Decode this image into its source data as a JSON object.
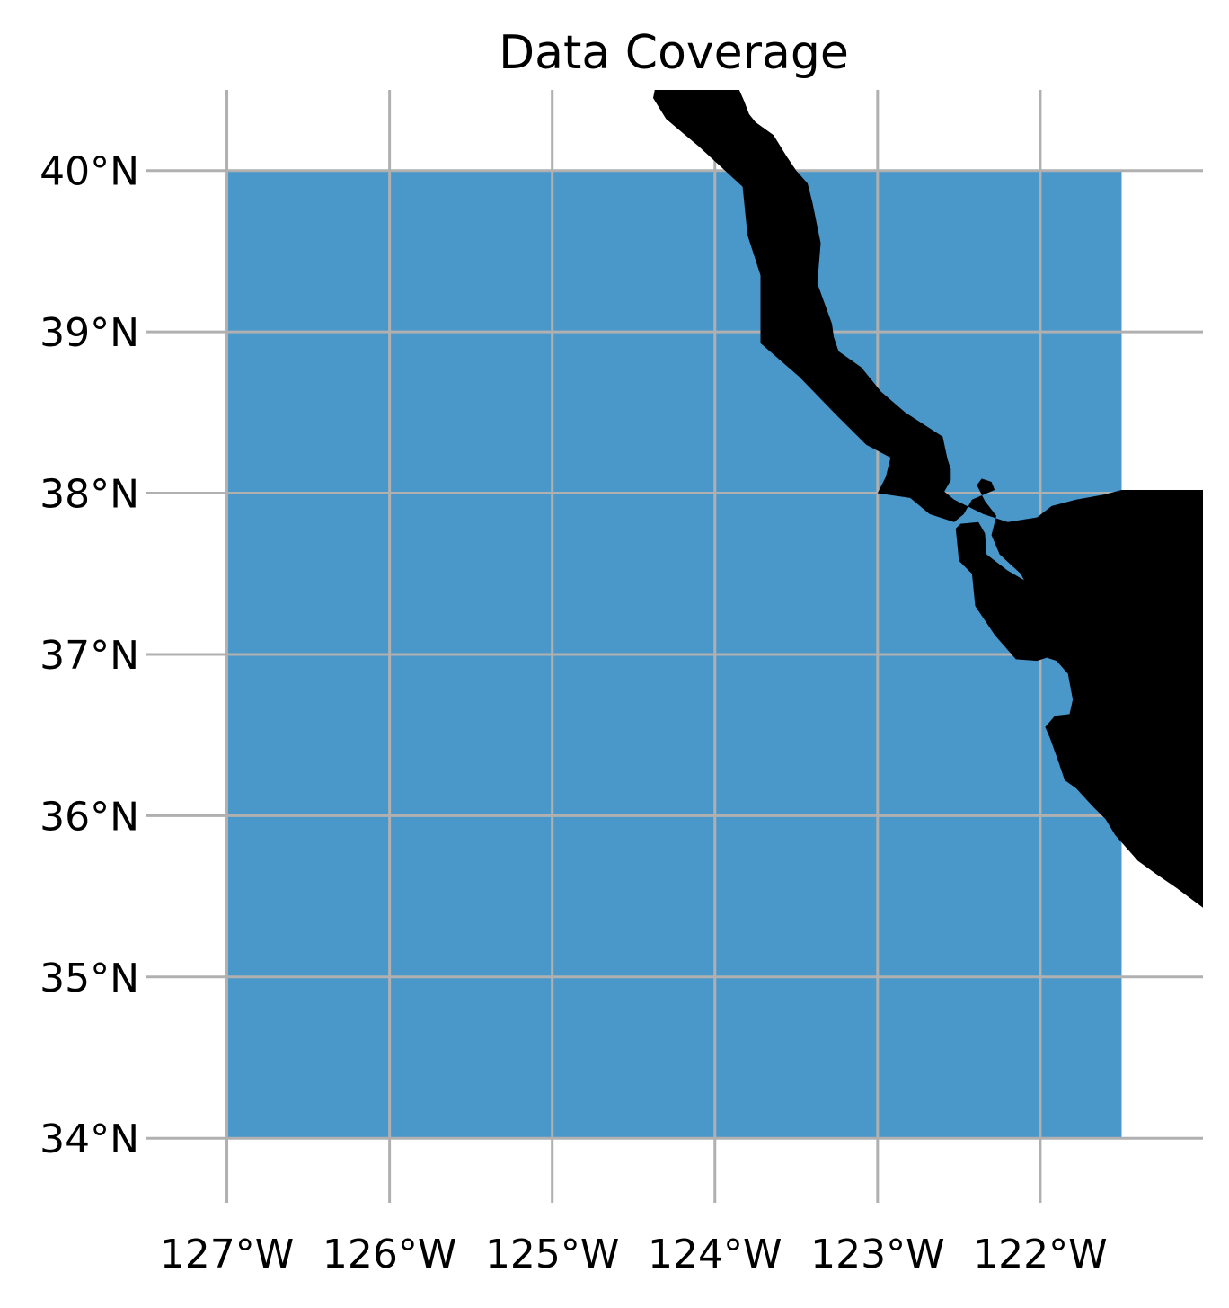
{
  "title": "Data Coverage",
  "map": {
    "extent": {
      "lon": [
        -127.5,
        -121.0
      ],
      "lat": [
        33.6,
        40.5
      ]
    },
    "coverage_box": {
      "lon": [
        -127.0,
        -121.5
      ],
      "lat": [
        34.0,
        40.0
      ]
    },
    "colors": {
      "coverage": "#4a97c9",
      "land": "#000000",
      "grid": "#b0b0b0",
      "background": "#ffffff"
    },
    "gridlines": true,
    "lat_ticks": [
      {
        "value": 40,
        "label": "40°N"
      },
      {
        "value": 39,
        "label": "39°N"
      },
      {
        "value": 38,
        "label": "38°N"
      },
      {
        "value": 37,
        "label": "37°N"
      },
      {
        "value": 36,
        "label": "36°N"
      },
      {
        "value": 35,
        "label": "35°N"
      },
      {
        "value": 34,
        "label": "34°N"
      }
    ],
    "lon_ticks": [
      {
        "value": -127,
        "label": "127°W"
      },
      {
        "value": -126,
        "label": "126°W"
      },
      {
        "value": -125,
        "label": "125°W"
      },
      {
        "value": -124,
        "label": "124°W"
      },
      {
        "value": -123,
        "label": "123°W"
      },
      {
        "value": -122,
        "label": "122°W"
      }
    ],
    "coastline": [
      [
        -123.85,
        40.5
      ],
      [
        -123.82,
        40.43
      ],
      [
        -123.79,
        40.35
      ],
      [
        -123.75,
        40.3
      ],
      [
        -123.64,
        40.22
      ],
      [
        -123.56,
        40.09
      ],
      [
        -123.5,
        40.0
      ],
      [
        -123.43,
        39.92
      ],
      [
        -123.4,
        39.8
      ],
      [
        -123.35,
        39.55
      ],
      [
        -123.37,
        39.3
      ],
      [
        -123.28,
        39.05
      ],
      [
        -123.27,
        38.97
      ],
      [
        -123.24,
        38.88
      ],
      [
        -123.1,
        38.78
      ],
      [
        -122.98,
        38.63
      ],
      [
        -122.83,
        38.5
      ],
      [
        -122.6,
        38.35
      ],
      [
        -122.57,
        38.21
      ],
      [
        -122.55,
        38.15
      ],
      [
        -122.55,
        38.08
      ],
      [
        -122.59,
        38.01
      ],
      [
        -122.53,
        37.96
      ],
      [
        -122.35,
        37.87
      ],
      [
        -122.2,
        37.82
      ],
      [
        -122.02,
        37.85
      ],
      [
        -121.93,
        37.92
      ],
      [
        -121.78,
        37.96
      ],
      [
        -121.61,
        37.99
      ],
      [
        -121.5,
        38.02
      ],
      [
        -121.0,
        38.02
      ],
      [
        -121.0,
        35.43
      ],
      [
        -121.16,
        35.55
      ],
      [
        -121.29,
        35.64
      ],
      [
        -121.4,
        35.72
      ],
      [
        -121.47,
        35.8
      ],
      [
        -121.54,
        35.88
      ],
      [
        -121.6,
        35.98
      ],
      [
        -121.68,
        36.06
      ],
      [
        -121.78,
        36.17
      ],
      [
        -121.85,
        36.22
      ],
      [
        -121.89,
        36.34
      ],
      [
        -121.94,
        36.48
      ],
      [
        -121.97,
        36.55
      ],
      [
        -121.91,
        36.62
      ],
      [
        -121.82,
        36.63
      ],
      [
        -121.8,
        36.72
      ],
      [
        -121.83,
        36.88
      ],
      [
        -121.9,
        36.96
      ],
      [
        -121.96,
        36.98
      ],
      [
        -122.02,
        36.96
      ],
      [
        -122.15,
        36.97
      ],
      [
        -122.28,
        37.12
      ],
      [
        -122.4,
        37.3
      ],
      [
        -122.42,
        37.5
      ],
      [
        -122.5,
        37.58
      ],
      [
        -122.52,
        37.78
      ],
      [
        -122.49,
        37.81
      ],
      [
        -122.38,
        37.82
      ],
      [
        -122.34,
        37.75
      ],
      [
        -122.33,
        37.62
      ],
      [
        -122.2,
        37.52
      ],
      [
        -122.1,
        37.46
      ],
      [
        -122.12,
        37.5
      ],
      [
        -122.25,
        37.62
      ],
      [
        -122.3,
        37.74
      ],
      [
        -122.27,
        37.86
      ],
      [
        -122.34,
        37.95
      ],
      [
        -122.39,
        38.05
      ],
      [
        -122.36,
        38.09
      ],
      [
        -122.3,
        38.07
      ],
      [
        -122.28,
        38.02
      ],
      [
        -122.42,
        37.96
      ],
      [
        -122.47,
        37.87
      ],
      [
        -122.53,
        37.82
      ],
      [
        -122.68,
        37.87
      ],
      [
        -122.8,
        37.97
      ],
      [
        -123.0,
        38.0
      ],
      [
        -122.95,
        38.1
      ],
      [
        -122.92,
        38.22
      ],
      [
        -123.07,
        38.3
      ],
      [
        -123.25,
        38.48
      ],
      [
        -123.48,
        38.72
      ],
      [
        -123.72,
        38.93
      ],
      [
        -123.72,
        39.35
      ],
      [
        -123.8,
        39.6
      ],
      [
        -123.83,
        39.9
      ],
      [
        -124.1,
        40.15
      ],
      [
        -124.3,
        40.32
      ],
      [
        -124.38,
        40.45
      ],
      [
        -124.37,
        40.5
      ]
    ]
  }
}
